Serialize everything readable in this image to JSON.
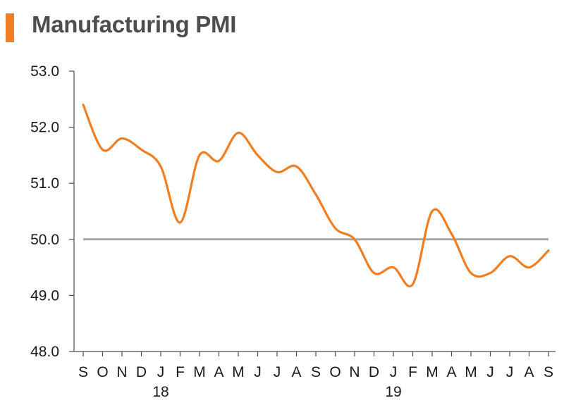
{
  "title": "Manufacturing PMI",
  "colors": {
    "accent": "#f07f24",
    "line": "#f07f24",
    "reference": "#a6a6a6",
    "axis": "#4d4d4d"
  },
  "chart_data": {
    "type": "line",
    "title": "Manufacturing PMI",
    "xlabel": "",
    "ylabel": "",
    "ylim": [
      48.0,
      53.0
    ],
    "y_ticks": [
      "48.0",
      "49.0",
      "50.0",
      "51.0",
      "52.0",
      "53.0"
    ],
    "categories": [
      "S",
      "O",
      "N",
      "D",
      "J",
      "F",
      "M",
      "A",
      "M",
      "J",
      "J",
      "A",
      "S",
      "O",
      "N",
      "D",
      "J",
      "F",
      "M",
      "A",
      "M",
      "J",
      "J",
      "A",
      "S"
    ],
    "year_labels": [
      {
        "index": 4,
        "label": "18"
      },
      {
        "index": 16,
        "label": "19"
      }
    ],
    "series": [
      {
        "values": [
          52.4,
          51.6,
          51.8,
          51.6,
          51.3,
          50.3,
          51.5,
          51.4,
          51.9,
          51.5,
          51.2,
          51.3,
          50.8,
          50.2,
          50.0,
          49.4,
          49.5,
          49.2,
          50.5,
          50.1,
          49.4,
          49.4,
          49.7,
          49.5,
          49.8
        ]
      }
    ],
    "reference_line": 50.0,
    "grid": false,
    "legend": "none"
  }
}
